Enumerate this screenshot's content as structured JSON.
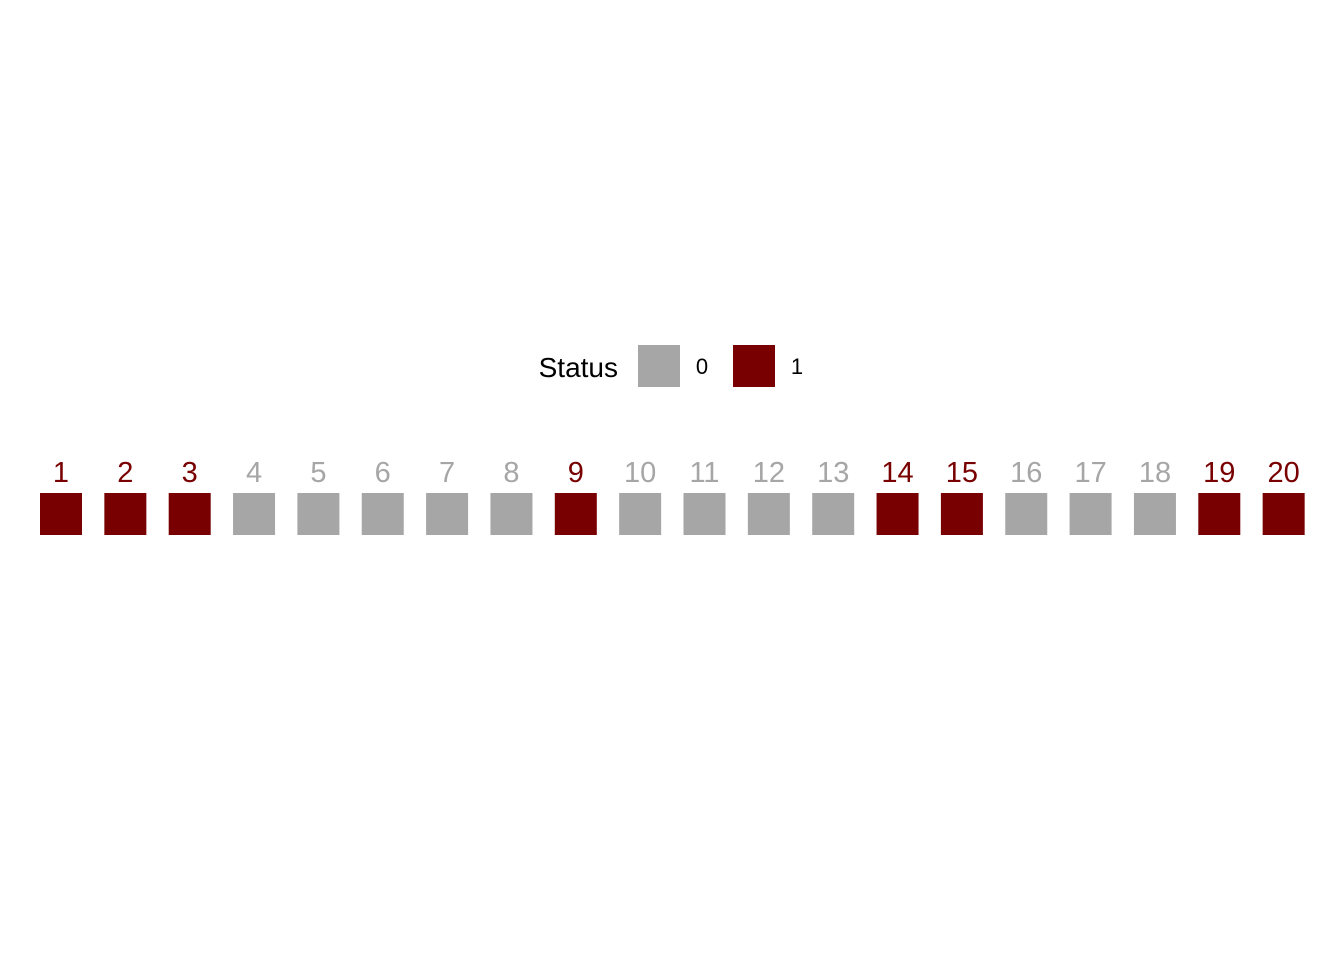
{
  "chart_data": {
    "type": "heatmap",
    "legend": {
      "title": "Status",
      "position": "top",
      "entries": [
        {
          "label": "0",
          "value": 0,
          "color": "#A6A6A6"
        },
        {
          "label": "1",
          "value": 1,
          "color": "#780000"
        }
      ]
    },
    "categories": [
      "1",
      "2",
      "3",
      "4",
      "5",
      "6",
      "7",
      "8",
      "9",
      "10",
      "11",
      "12",
      "13",
      "14",
      "15",
      "16",
      "17",
      "18",
      "19",
      "20"
    ],
    "values": [
      1,
      1,
      1,
      0,
      0,
      0,
      0,
      0,
      1,
      0,
      0,
      0,
      0,
      1,
      1,
      0,
      0,
      0,
      1,
      1
    ],
    "colors": {
      "0": "#A6A6A6",
      "1": "#780000"
    },
    "grid": false,
    "axes": false
  }
}
